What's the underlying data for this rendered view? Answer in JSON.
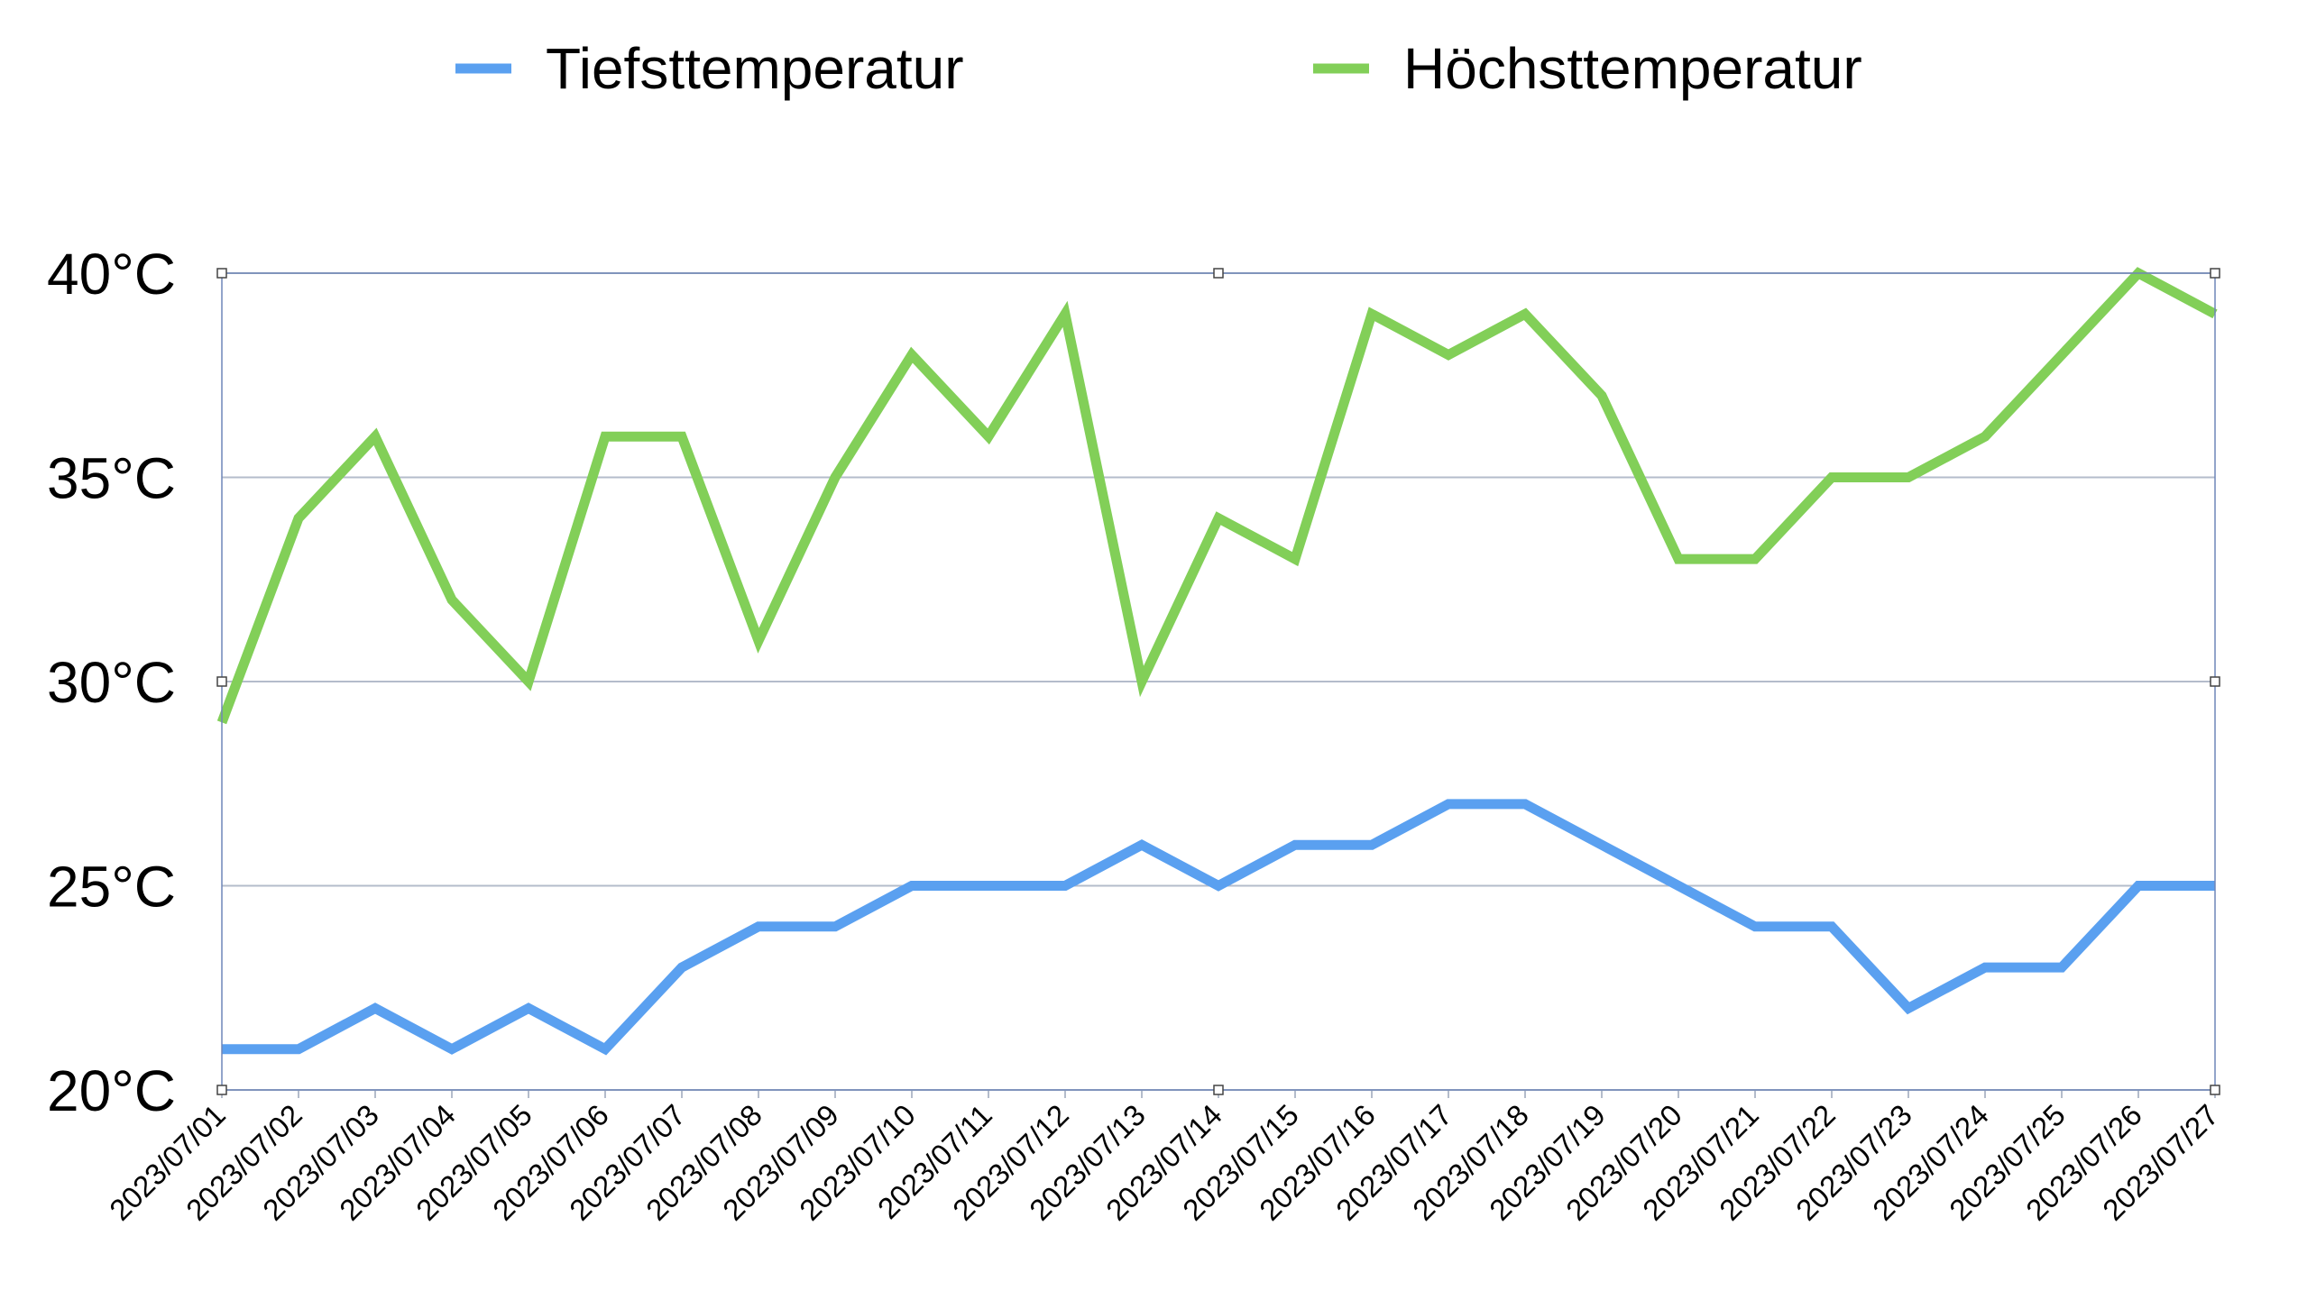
{
  "chart_data": {
    "type": "line",
    "title": "",
    "xlabel": "",
    "ylabel": "",
    "y_unit": "°C",
    "ylim": [
      20,
      40
    ],
    "yticks": [
      20,
      25,
      30,
      35,
      40
    ],
    "ytick_labels": [
      "20°C",
      "25°C",
      "30°C",
      "35°C",
      "40°C"
    ],
    "grid": "horizontal",
    "legend_position": "top",
    "categories": [
      "2023/07/01",
      "2023/07/02",
      "2023/07/03",
      "2023/07/04",
      "2023/07/05",
      "2023/07/06",
      "2023/07/07",
      "2023/07/08",
      "2023/07/09",
      "2023/07/10",
      "2023/07/11",
      "2023/07/12",
      "2023/07/13",
      "2023/07/14",
      "2023/07/15",
      "2023/07/16",
      "2023/07/17",
      "2023/07/18",
      "2023/07/19",
      "2023/07/20",
      "2023/07/21",
      "2023/07/22",
      "2023/07/23",
      "2023/07/24",
      "2023/07/25",
      "2023/07/26",
      "2023/07/27"
    ],
    "series": [
      {
        "name": "Tiefsttemperatur",
        "color": "#5aa0f0",
        "values": [
          21,
          21,
          22,
          21,
          22,
          21,
          23,
          24,
          24,
          25,
          25,
          25,
          26,
          25,
          26,
          26,
          27,
          27,
          26,
          25,
          24,
          24,
          22,
          23,
          23,
          25,
          25
        ]
      },
      {
        "name": "Höchsttemperatur",
        "color": "#82cf58",
        "values": [
          29,
          34,
          36,
          32,
          30,
          36,
          36,
          31,
          35,
          38,
          36,
          39,
          30,
          34,
          33,
          39,
          38,
          39,
          37,
          33,
          33,
          35,
          35,
          36,
          38,
          40,
          39
        ]
      }
    ],
    "colors": {
      "grid": "#b4bccb",
      "plot_border": "#6f86b8",
      "handle": "#444444"
    }
  }
}
